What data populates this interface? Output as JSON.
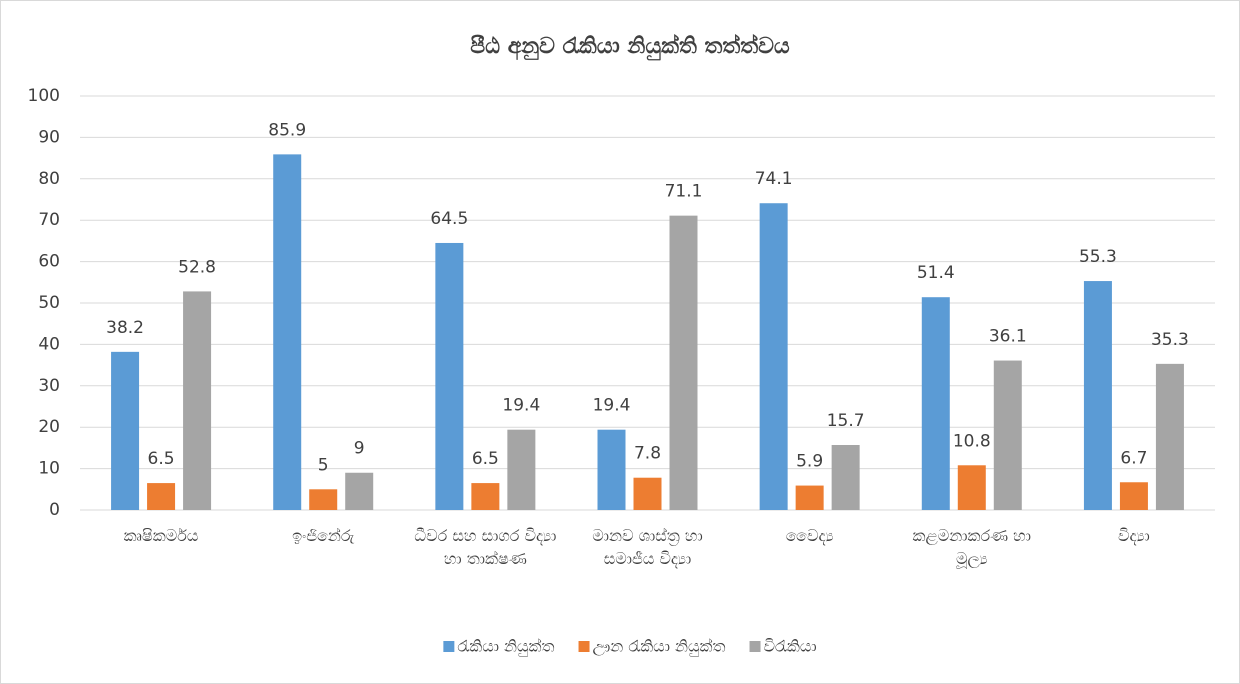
{
  "chart_data": {
    "type": "bar",
    "title": "පීඨ අනුව රැකියා නියුක්ති තත්ත්වය",
    "categories": [
      "කෘෂිකර්මය",
      "ඉංජිනේරු",
      "ධීවර සහ සාගර විද්‍යා හා තාක්ෂණ",
      "මානව ශාස්ත්‍ර හා සමාජීය විද්‍යා",
      "වෛද්‍ය",
      "කළමනාකරණ හා මූල්‍ය",
      "විද්‍යා"
    ],
    "series": [
      {
        "name": "රැකියා නියුක්ත",
        "color": "#5b9bd5",
        "values": [
          38.2,
          85.9,
          64.5,
          19.4,
          74.1,
          51.4,
          55.3
        ]
      },
      {
        "name": "ඌන රැකියා නියුක්ත",
        "color": "#ed7d31",
        "values": [
          6.5,
          5,
          6.5,
          7.8,
          5.9,
          10.8,
          6.7
        ]
      },
      {
        "name": "විරැකියා",
        "color": "#a5a5a5",
        "values": [
          52.8,
          9,
          19.4,
          71.1,
          15.7,
          36.1,
          35.3
        ]
      }
    ],
    "ylim": [
      0,
      100
    ],
    "yticks": [
      0,
      10,
      20,
      30,
      40,
      50,
      60,
      70,
      80,
      90,
      100
    ],
    "grid": true,
    "legend": "bottom"
  }
}
